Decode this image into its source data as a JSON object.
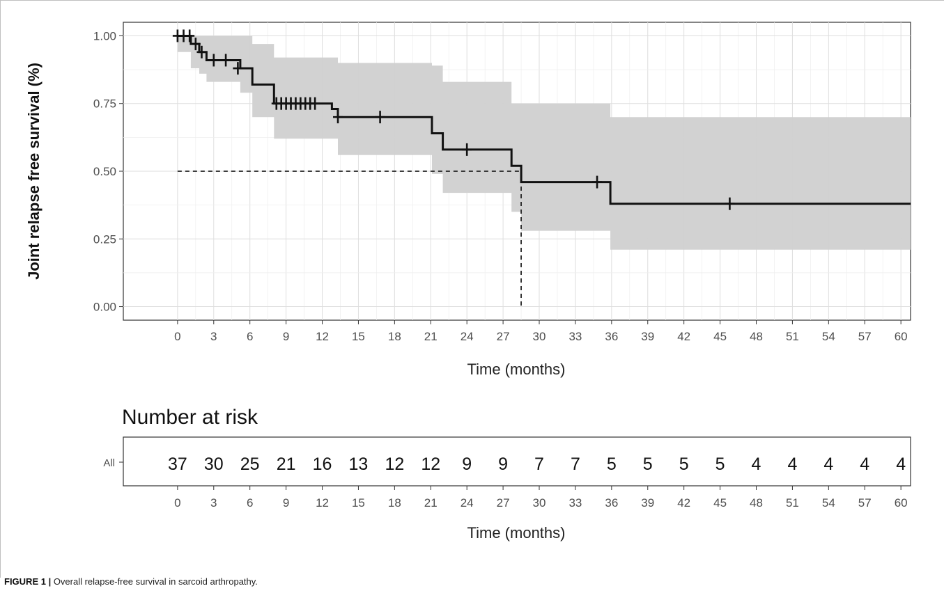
{
  "chart_data": [
    {
      "type": "line",
      "subtype": "kaplan-meier step survival curve with confidence band",
      "xlabel": "Time (months)",
      "ylabel": "Joint relapse free survival (%)",
      "xlim": [
        -4.5,
        60.8
      ],
      "ylim": [
        -0.05,
        1.05
      ],
      "x_ticks": [
        0,
        3,
        6,
        9,
        12,
        15,
        18,
        21,
        24,
        27,
        30,
        33,
        36,
        39,
        42,
        45,
        48,
        51,
        54,
        57,
        60
      ],
      "y_ticks": [
        "0.00",
        "0.25",
        "0.50",
        "0.75",
        "1.00"
      ],
      "y_tick_values": [
        0,
        0.25,
        0.5,
        0.75,
        1.0
      ],
      "grid": true,
      "legend": "none",
      "series": [
        {
          "kind": "step",
          "x": [
            0,
            1.1,
            1.8,
            2.4,
            5.2,
            6.2,
            8.0,
            12.8,
            13.3,
            21.1,
            22.0,
            27.7,
            28.5,
            35.9,
            60.8
          ],
          "y": [
            1.0,
            0.97,
            0.94,
            0.91,
            0.88,
            0.82,
            0.75,
            0.73,
            0.7,
            0.64,
            0.58,
            0.52,
            0.46,
            0.38,
            0.38
          ]
        }
      ],
      "confidence_band": {
        "x": [
          0,
          1.1,
          1.8,
          2.4,
          5.2,
          6.2,
          8.0,
          13.3,
          21.1,
          22.0,
          27.7,
          28.5,
          35.9,
          60.8
        ],
        "lower": [
          0.94,
          0.88,
          0.86,
          0.83,
          0.79,
          0.7,
          0.62,
          0.56,
          0.49,
          0.42,
          0.35,
          0.28,
          0.21,
          0.21
        ],
        "upper": [
          1.0,
          1.0,
          1.0,
          1.0,
          1.0,
          0.97,
          0.92,
          0.9,
          0.89,
          0.83,
          0.75,
          0.75,
          0.7,
          0.7
        ]
      },
      "censor_marks": {
        "x": [
          0.0,
          0.5,
          1.0,
          1.5,
          2.0,
          3.0,
          4.0,
          5.0,
          8.2,
          8.6,
          9.0,
          9.4,
          9.8,
          10.2,
          10.6,
          11.0,
          11.4,
          13.3,
          16.8,
          24.0,
          34.8,
          45.8
        ],
        "y": [
          1.0,
          1.0,
          1.0,
          0.97,
          0.94,
          0.91,
          0.91,
          0.88,
          0.75,
          0.75,
          0.75,
          0.75,
          0.75,
          0.75,
          0.75,
          0.75,
          0.75,
          0.7,
          0.7,
          0.58,
          0.46,
          0.38
        ]
      },
      "median_line": {
        "survival": 0.5,
        "time": 28.5
      }
    },
    {
      "type": "table",
      "title": "Number at risk",
      "row_label": "All",
      "xlabel": "Time (months)",
      "x": [
        0,
        3,
        6,
        9,
        12,
        15,
        18,
        21,
        24,
        27,
        30,
        33,
        36,
        39,
        42,
        45,
        48,
        51,
        54,
        57,
        60
      ],
      "values": [
        37,
        30,
        25,
        21,
        16,
        13,
        12,
        12,
        9,
        9,
        7,
        7,
        5,
        5,
        5,
        5,
        4,
        4,
        4,
        4,
        4
      ]
    }
  ],
  "caption": {
    "label": "FIGURE 1 |",
    "text": " Overall relapse-free survival in sarcoid arthropathy."
  },
  "colors": {
    "band": "#d0d0d0",
    "curve": "#111111",
    "grid_major": "#dedede",
    "grid_minor": "#eeeeee",
    "axis_text": "#4d4d4d"
  }
}
